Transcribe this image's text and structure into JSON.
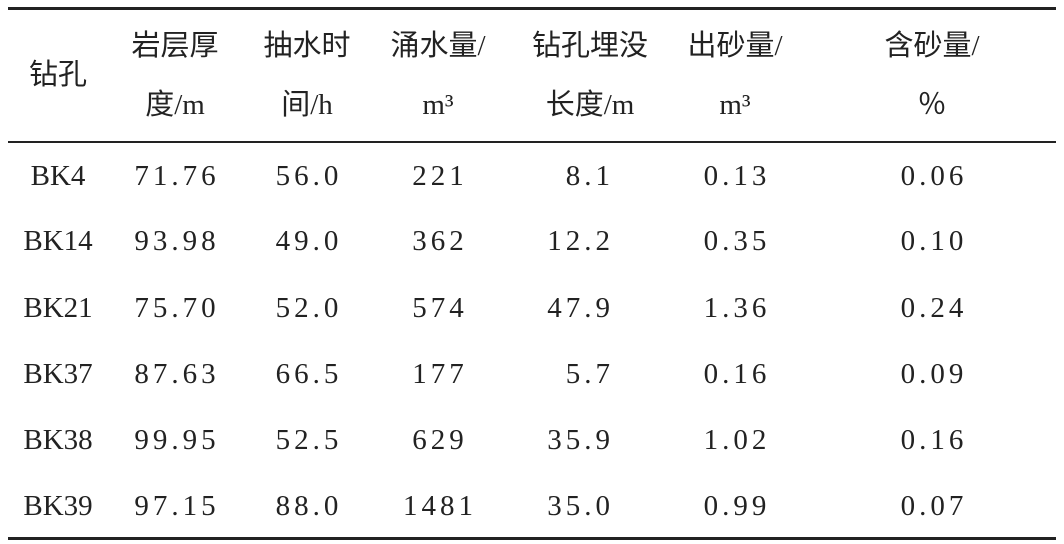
{
  "table": {
    "header": [
      [
        "钻孔"
      ],
      [
        "岩层厚",
        "度/m"
      ],
      [
        "抽水时",
        "间/h"
      ],
      [
        "涌水量/",
        "m³"
      ],
      [
        "钻孔埋没",
        "长度/m"
      ],
      [
        "出砂量/",
        "m³"
      ],
      [
        "含砂量/",
        "％"
      ]
    ],
    "rows": [
      [
        "BK4",
        "71.76",
        "56.0",
        "221",
        "8.1",
        "0.13",
        "0.06"
      ],
      [
        "BK14",
        "93.98",
        "49.0",
        "362",
        "12.2",
        "0.35",
        "0.10"
      ],
      [
        "BK21",
        "75.70",
        "52.0",
        "574",
        "47.9",
        "1.36",
        "0.24"
      ],
      [
        "BK37",
        "87.63",
        "66.5",
        "177",
        "5.7",
        "0.16",
        "0.09"
      ],
      [
        "BK38",
        "99.95",
        "52.5",
        "629",
        "35.9",
        "1.02",
        "0.16"
      ],
      [
        "BK39",
        "97.15",
        "88.0",
        "1481",
        "35.0",
        "0.99",
        "0.07"
      ]
    ]
  }
}
